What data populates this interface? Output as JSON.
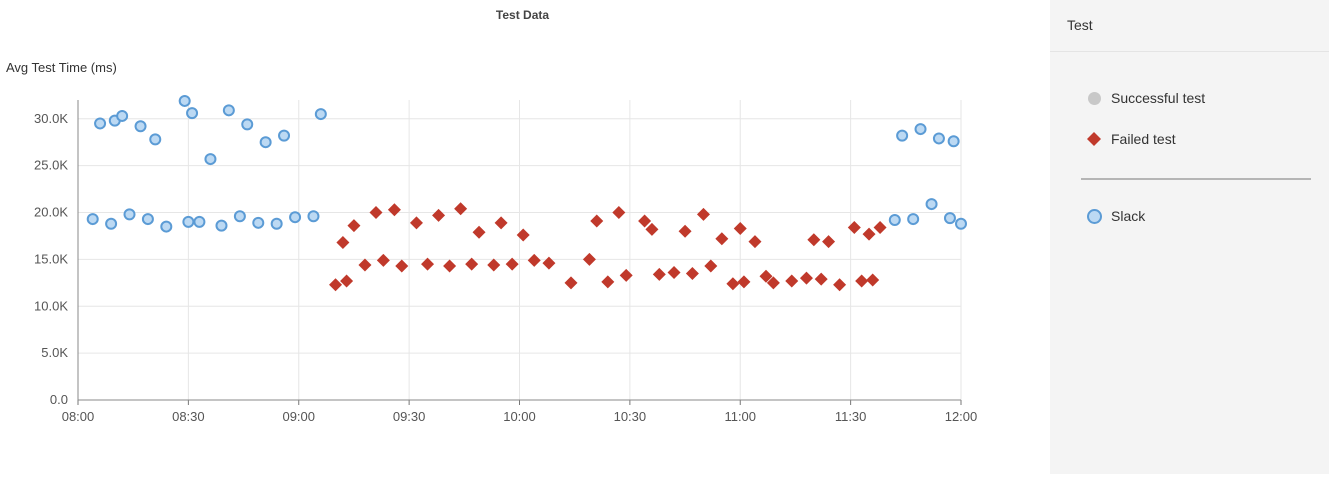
{
  "chart_data": {
    "type": "scatter",
    "title": "Test Data",
    "ylabel": "Avg Test Time (ms)",
    "xlabel": "",
    "ylim": [
      0,
      32000
    ],
    "xlim": [
      "08:00",
      "12:00"
    ],
    "x_tick_labels": [
      "08:00",
      "08:30",
      "09:00",
      "09:30",
      "10:00",
      "10:30",
      "11:00",
      "11:30",
      "12:00"
    ],
    "y_tick_labels": [
      "0.0",
      "5.0K",
      "10.0K",
      "15.0K",
      "20.0K",
      "25.0K",
      "30.0K"
    ],
    "grid": true,
    "legend_placement": "right",
    "series": [
      {
        "name": "Successful test",
        "marker": "circle",
        "color": "#c8c8c8",
        "points": []
      },
      {
        "name": "Failed test",
        "marker": "diamond",
        "color": "#c0392b",
        "points": [
          [
            "09:10",
            12300
          ],
          [
            "09:12",
            16800
          ],
          [
            "09:13",
            12700
          ],
          [
            "09:15",
            18600
          ],
          [
            "09:18",
            14400
          ],
          [
            "09:21",
            20000
          ],
          [
            "09:23",
            14900
          ],
          [
            "09:26",
            20300
          ],
          [
            "09:28",
            14300
          ],
          [
            "09:32",
            18900
          ],
          [
            "09:35",
            14500
          ],
          [
            "09:38",
            19700
          ],
          [
            "09:41",
            14300
          ],
          [
            "09:44",
            20400
          ],
          [
            "09:47",
            14500
          ],
          [
            "09:49",
            17900
          ],
          [
            "09:53",
            14400
          ],
          [
            "09:55",
            18900
          ],
          [
            "09:58",
            14500
          ],
          [
            "10:01",
            17600
          ],
          [
            "10:04",
            14900
          ],
          [
            "10:08",
            14600
          ],
          [
            "10:14",
            12500
          ],
          [
            "10:19",
            15000
          ],
          [
            "10:21",
            19100
          ],
          [
            "10:24",
            12600
          ],
          [
            "10:27",
            20000
          ],
          [
            "10:29",
            13300
          ],
          [
            "10:34",
            19100
          ],
          [
            "10:36",
            18200
          ],
          [
            "10:38",
            13400
          ],
          [
            "10:42",
            13600
          ],
          [
            "10:45",
            18000
          ],
          [
            "10:47",
            13500
          ],
          [
            "10:50",
            19800
          ],
          [
            "10:52",
            14300
          ],
          [
            "10:55",
            17200
          ],
          [
            "10:58",
            12400
          ],
          [
            "11:00",
            18300
          ],
          [
            "11:01",
            12600
          ],
          [
            "11:04",
            16900
          ],
          [
            "11:07",
            13200
          ],
          [
            "11:09",
            12500
          ],
          [
            "11:14",
            12700
          ],
          [
            "11:18",
            13000
          ],
          [
            "11:20",
            17100
          ],
          [
            "11:22",
            12900
          ],
          [
            "11:24",
            16900
          ],
          [
            "11:27",
            12300
          ],
          [
            "11:31",
            18400
          ],
          [
            "11:33",
            12700
          ],
          [
            "11:35",
            17700
          ],
          [
            "11:36",
            12800
          ],
          [
            "11:38",
            18400
          ]
        ]
      },
      {
        "name": "Slack",
        "marker": "circle",
        "color": "#5b9bd5",
        "points": [
          [
            "08:04",
            19300
          ],
          [
            "08:06",
            29500
          ],
          [
            "08:09",
            18800
          ],
          [
            "08:10",
            29800
          ],
          [
            "08:12",
            30300
          ],
          [
            "08:14",
            19800
          ],
          [
            "08:17",
            29200
          ],
          [
            "08:19",
            19300
          ],
          [
            "08:21",
            27800
          ],
          [
            "08:24",
            18500
          ],
          [
            "08:29",
            31900
          ],
          [
            "08:30",
            19000
          ],
          [
            "08:31",
            30600
          ],
          [
            "08:33",
            19000
          ],
          [
            "08:36",
            25700
          ],
          [
            "08:39",
            18600
          ],
          [
            "08:41",
            30900
          ],
          [
            "08:44",
            19600
          ],
          [
            "08:46",
            29400
          ],
          [
            "08:49",
            18900
          ],
          [
            "08:51",
            27500
          ],
          [
            "08:54",
            18800
          ],
          [
            "08:56",
            28200
          ],
          [
            "08:59",
            19500
          ],
          [
            "09:04",
            19600
          ],
          [
            "09:06",
            30500
          ],
          [
            "11:42",
            19200
          ],
          [
            "11:44",
            28200
          ],
          [
            "11:47",
            19300
          ],
          [
            "11:49",
            28900
          ],
          [
            "11:52",
            20900
          ],
          [
            "11:54",
            27900
          ],
          [
            "11:57",
            19400
          ],
          [
            "11:58",
            27600
          ],
          [
            "12:00",
            18800
          ]
        ]
      }
    ]
  },
  "legend": {
    "header": "Test",
    "items": [
      {
        "label": "Successful test"
      },
      {
        "label": "Failed test"
      },
      {
        "label": "Slack"
      }
    ]
  }
}
